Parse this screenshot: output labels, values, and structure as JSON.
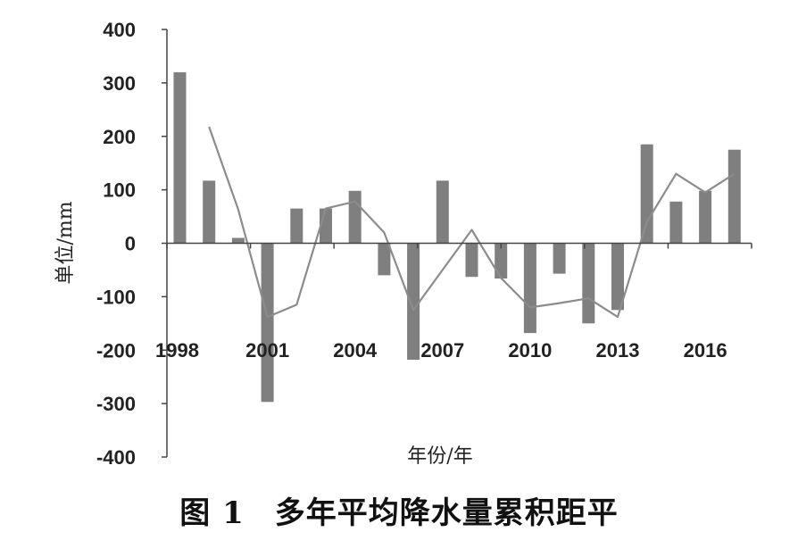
{
  "chart_data": {
    "type": "bar",
    "title": "",
    "xlabel": "年份/年",
    "ylabel": "单位/mm",
    "ylim": [
      -400,
      400
    ],
    "yticks": [
      400,
      300,
      200,
      100,
      0,
      -100,
      -200,
      -300,
      -400
    ],
    "ytick_labels": [
      "400",
      "300",
      "200",
      "100",
      "0",
      "-100",
      "-200",
      "-300",
      "-400"
    ],
    "x": [
      1998,
      1999,
      2000,
      2001,
      2002,
      2003,
      2004,
      2005,
      2006,
      2007,
      2008,
      2009,
      2010,
      2011,
      2012,
      2013,
      2014,
      2015,
      2016,
      2017
    ],
    "xtick_labels": [
      "1998",
      "2001",
      "2004",
      "2007",
      "2010",
      "2013",
      "2016"
    ],
    "xtick_years": [
      1998,
      2001,
      2004,
      2007,
      2010,
      2013,
      2016
    ],
    "series": [
      {
        "type": "bar",
        "color": "#7f7f7f",
        "values": [
          320,
          117,
          10,
          -297,
          65,
          65,
          98,
          -60,
          -218,
          117,
          -63,
          -66,
          -168,
          -57,
          -150,
          -125,
          185,
          78,
          98,
          175
        ]
      },
      {
        "type": "line",
        "color": "#8c8c8c",
        "x": [
          1999,
          2000,
          2001,
          2002,
          2003,
          2004,
          2005,
          2006,
          2007,
          2008,
          2009,
          2010,
          2011,
          2012,
          2013,
          2014,
          2015,
          2016,
          2017
        ],
        "values": [
          218,
          63,
          -138,
          -115,
          65,
          78,
          20,
          -125,
          -50,
          25,
          -65,
          -120,
          -112,
          -103,
          -138,
          40,
          130,
          95,
          130
        ]
      }
    ],
    "grid": false,
    "legend": "none"
  },
  "caption": {
    "figure_number": "图 1",
    "text": "多年平均降水量累积距平"
  }
}
